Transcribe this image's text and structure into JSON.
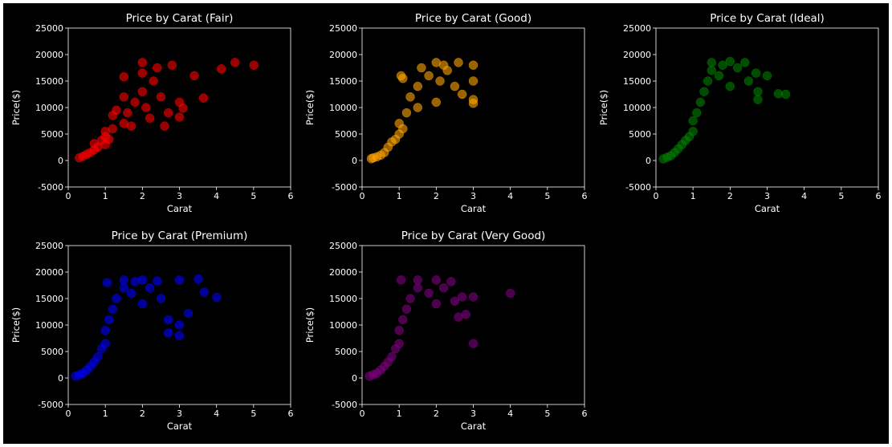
{
  "chart_data": [
    {
      "type": "scatter",
      "title": "Price by Carat (Fair)",
      "xlabel": "Carat",
      "ylabel": "Price($)",
      "xlim": [
        0,
        6
      ],
      "ylim": [
        -5000,
        25000
      ],
      "xticks": [
        "0",
        "1",
        "2",
        "3",
        "4",
        "5",
        "6"
      ],
      "yticks": [
        "-5000",
        "0",
        "5000",
        "10000",
        "15000",
        "20000",
        "25000"
      ],
      "color": "#ff0000",
      "points": [
        [
          0.3,
          500
        ],
        [
          0.4,
          800
        ],
        [
          0.5,
          1200
        ],
        [
          0.6,
          1500
        ],
        [
          0.7,
          2000
        ],
        [
          0.7,
          3200
        ],
        [
          0.8,
          2500
        ],
        [
          0.9,
          3800
        ],
        [
          1.0,
          3000
        ],
        [
          1.0,
          4500
        ],
        [
          1.0,
          5500
        ],
        [
          1.1,
          4000
        ],
        [
          1.2,
          6000
        ],
        [
          1.2,
          8500
        ],
        [
          1.3,
          9500
        ],
        [
          1.5,
          7000
        ],
        [
          1.5,
          12000
        ],
        [
          1.5,
          15800
        ],
        [
          1.6,
          9000
        ],
        [
          1.7,
          6500
        ],
        [
          1.8,
          11000
        ],
        [
          2.0,
          13000
        ],
        [
          2.0,
          16500
        ],
        [
          2.0,
          18500
        ],
        [
          2.1,
          10000
        ],
        [
          2.2,
          8000
        ],
        [
          2.3,
          15000
        ],
        [
          2.4,
          17500
        ],
        [
          2.5,
          12000
        ],
        [
          2.6,
          6500
        ],
        [
          2.7,
          9000
        ],
        [
          2.8,
          18000
        ],
        [
          3.0,
          11000
        ],
        [
          3.0,
          8200
        ],
        [
          3.1,
          9900
        ],
        [
          3.4,
          16000
        ],
        [
          3.65,
          11800
        ],
        [
          4.13,
          17300
        ],
        [
          4.5,
          18500
        ],
        [
          5.01,
          18000
        ]
      ]
    },
    {
      "type": "scatter",
      "title": "Price by Carat (Good)",
      "xlabel": "Carat",
      "ylabel": "Price($)",
      "xlim": [
        0,
        6
      ],
      "ylim": [
        -5000,
        25000
      ],
      "xticks": [
        "0",
        "1",
        "2",
        "3",
        "4",
        "5",
        "6"
      ],
      "yticks": [
        "-5000",
        "0",
        "5000",
        "10000",
        "15000",
        "20000",
        "25000"
      ],
      "color": "#ffa500",
      "points": [
        [
          0.25,
          350
        ],
        [
          0.3,
          500
        ],
        [
          0.4,
          700
        ],
        [
          0.5,
          1000
        ],
        [
          0.6,
          1500
        ],
        [
          0.7,
          2500
        ],
        [
          0.8,
          3500
        ],
        [
          0.9,
          4000
        ],
        [
          1.0,
          5000
        ],
        [
          1.0,
          7000
        ],
        [
          1.05,
          16000
        ],
        [
          1.1,
          6000
        ],
        [
          1.1,
          15500
        ],
        [
          1.2,
          9000
        ],
        [
          1.3,
          12000
        ],
        [
          1.5,
          14000
        ],
        [
          1.5,
          10000
        ],
        [
          1.6,
          17500
        ],
        [
          1.8,
          16000
        ],
        [
          2.0,
          18500
        ],
        [
          2.0,
          11000
        ],
        [
          2.1,
          15000
        ],
        [
          2.2,
          18000
        ],
        [
          2.3,
          17000
        ],
        [
          2.5,
          14000
        ],
        [
          2.6,
          18500
        ],
        [
          2.7,
          12500
        ],
        [
          3.0,
          18000
        ],
        [
          3.0,
          15000
        ],
        [
          3.0,
          11500
        ],
        [
          3.0,
          10800
        ]
      ]
    },
    {
      "type": "scatter",
      "title": "Price by Carat (Ideal)",
      "xlabel": "Carat",
      "ylabel": "Price($)",
      "xlim": [
        0,
        6
      ],
      "ylim": [
        -5000,
        25000
      ],
      "xticks": [
        "0",
        "1",
        "2",
        "3",
        "4",
        "5",
        "6"
      ],
      "yticks": [
        "-5000",
        "0",
        "5000",
        "10000",
        "15000",
        "20000",
        "25000"
      ],
      "color": "#008000",
      "points": [
        [
          0.2,
          300
        ],
        [
          0.3,
          600
        ],
        [
          0.4,
          900
        ],
        [
          0.5,
          1500
        ],
        [
          0.6,
          2200
        ],
        [
          0.7,
          3000
        ],
        [
          0.8,
          3800
        ],
        [
          0.9,
          4500
        ],
        [
          1.0,
          5500
        ],
        [
          1.0,
          7500
        ],
        [
          1.1,
          9000
        ],
        [
          1.2,
          11000
        ],
        [
          1.3,
          13000
        ],
        [
          1.4,
          15000
        ],
        [
          1.5,
          17000
        ],
        [
          1.5,
          18500
        ],
        [
          1.7,
          16000
        ],
        [
          1.8,
          18000
        ],
        [
          2.0,
          18700
        ],
        [
          2.0,
          14000
        ],
        [
          2.2,
          17500
        ],
        [
          2.4,
          18500
        ],
        [
          2.5,
          15000
        ],
        [
          2.7,
          16500
        ],
        [
          2.75,
          11500
        ],
        [
          2.75,
          13000
        ],
        [
          3.0,
          16000
        ],
        [
          3.3,
          12600
        ],
        [
          3.5,
          12500
        ]
      ]
    },
    {
      "type": "scatter",
      "title": "Price by Carat (Premium)",
      "xlabel": "Carat",
      "ylabel": "Price($)",
      "xlim": [
        0,
        6
      ],
      "ylim": [
        -5000,
        25000
      ],
      "xticks": [
        "0",
        "1",
        "2",
        "3",
        "4",
        "5",
        "6"
      ],
      "yticks": [
        "-5000",
        "0",
        "5000",
        "10000",
        "15000",
        "20000",
        "25000"
      ],
      "color": "#0000ff",
      "points": [
        [
          0.2,
          350
        ],
        [
          0.3,
          600
        ],
        [
          0.4,
          900
        ],
        [
          0.5,
          1500
        ],
        [
          0.6,
          2200
        ],
        [
          0.7,
          3000
        ],
        [
          0.8,
          4000
        ],
        [
          0.9,
          5500
        ],
        [
          1.0,
          6500
        ],
        [
          1.0,
          9000
        ],
        [
          1.05,
          18000
        ],
        [
          1.1,
          11000
        ],
        [
          1.2,
          13000
        ],
        [
          1.3,
          15000
        ],
        [
          1.5,
          17000
        ],
        [
          1.5,
          18500
        ],
        [
          1.7,
          16000
        ],
        [
          1.8,
          18200
        ],
        [
          2.0,
          18500
        ],
        [
          2.0,
          14000
        ],
        [
          2.2,
          17000
        ],
        [
          2.4,
          18300
        ],
        [
          2.5,
          15000
        ],
        [
          2.7,
          11000
        ],
        [
          2.7,
          8500
        ],
        [
          3.0,
          18500
        ],
        [
          3.0,
          10000
        ],
        [
          3.0,
          8000
        ],
        [
          3.24,
          12200
        ],
        [
          3.51,
          18700
        ],
        [
          3.67,
          16200
        ],
        [
          4.01,
          15200
        ]
      ]
    },
    {
      "type": "scatter",
      "title": "Price by Carat (Very Good)",
      "xlabel": "Carat",
      "ylabel": "Price($)",
      "xlim": [
        0,
        6
      ],
      "ylim": [
        -5000,
        25000
      ],
      "xticks": [
        "0",
        "1",
        "2",
        "3",
        "4",
        "5",
        "6"
      ],
      "yticks": [
        "-5000",
        "0",
        "5000",
        "10000",
        "15000",
        "20000",
        "25000"
      ],
      "color": "#800080",
      "points": [
        [
          0.2,
          350
        ],
        [
          0.3,
          600
        ],
        [
          0.4,
          900
        ],
        [
          0.5,
          1500
        ],
        [
          0.6,
          2200
        ],
        [
          0.7,
          3000
        ],
        [
          0.8,
          4000
        ],
        [
          0.9,
          5500
        ],
        [
          1.0,
          6500
        ],
        [
          1.0,
          9000
        ],
        [
          1.05,
          18500
        ],
        [
          1.1,
          11000
        ],
        [
          1.2,
          13000
        ],
        [
          1.3,
          15000
        ],
        [
          1.5,
          17000
        ],
        [
          1.5,
          18500
        ],
        [
          1.8,
          16000
        ],
        [
          2.0,
          18500
        ],
        [
          2.0,
          14000
        ],
        [
          2.2,
          17000
        ],
        [
          2.4,
          18200
        ],
        [
          2.5,
          14500
        ],
        [
          2.6,
          11500
        ],
        [
          2.7,
          15300
        ],
        [
          2.8,
          12000
        ],
        [
          3.0,
          15300
        ],
        [
          3.0,
          6500
        ],
        [
          4.0,
          16000
        ]
      ]
    }
  ]
}
